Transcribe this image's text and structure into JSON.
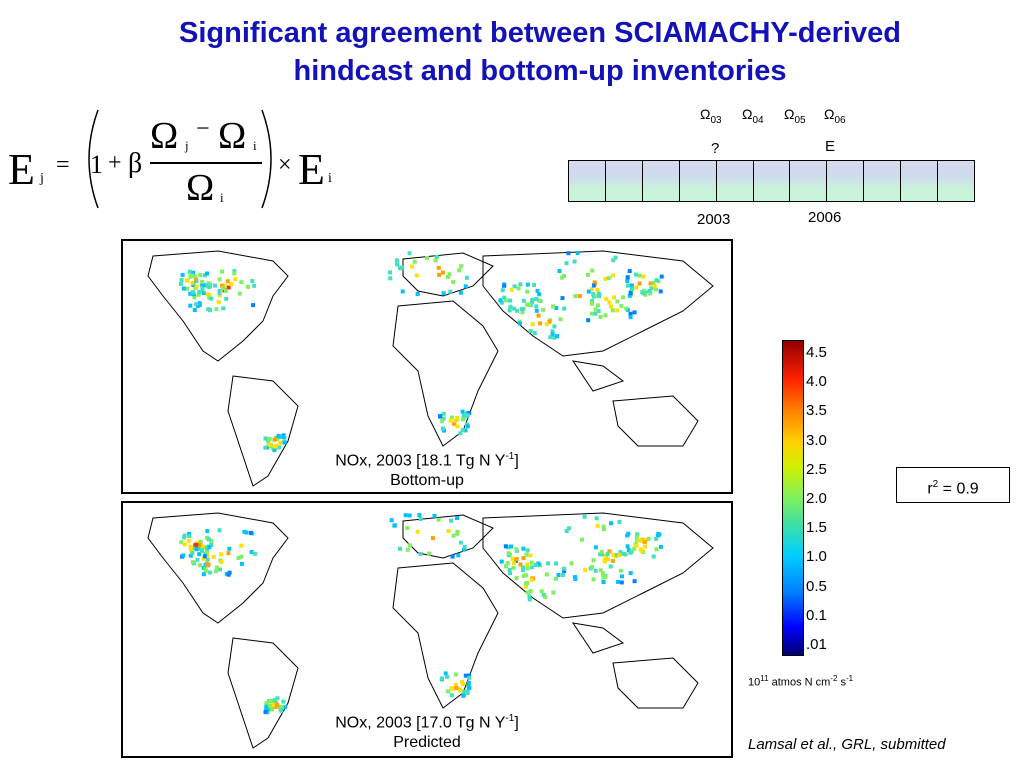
{
  "title": {
    "line1": "Significant agreement between SCIAMACHY-derived",
    "line2": "hindcast and bottom-up inventories"
  },
  "formula": {
    "E": "E",
    "sub_j": "j",
    "sub_i": "i",
    "equals": "=",
    "one": "1",
    "plus": "+",
    "beta": "β",
    "omega": "Ω",
    "minus": "−",
    "times": "×"
  },
  "omega_labels": [
    {
      "symbol": "Ω",
      "sub": "03"
    },
    {
      "symbol": "Ω",
      "sub": "04"
    },
    {
      "symbol": "Ω",
      "sub": "05"
    },
    {
      "symbol": "Ω",
      "sub": "06"
    }
  ],
  "timeline": {
    "question_mark": "?",
    "e_mark": "E",
    "cells": 11,
    "year_left": "2003",
    "year_right": "2006"
  },
  "maps": {
    "top": {
      "caption_prefix": "NOx, 2003 [18.1 Tg N Y",
      "caption_sup": "-1",
      "caption_suffix": "]",
      "caption_line2": "Bottom-up"
    },
    "bottom": {
      "caption_prefix": "NOx, 2003 [17.0 Tg N Y",
      "caption_sup": "-1",
      "caption_suffix": "]",
      "caption_line2": "Predicted"
    }
  },
  "colorbar": {
    "ticks": [
      "4.5",
      "4.0",
      "3.5",
      "3.0",
      "2.5",
      "2.0",
      "1.5",
      "1.0",
      "0.5",
      "0.1",
      ".01"
    ],
    "units_prefix": "10",
    "units_exp": "11",
    "units_text": " atmos N cm",
    "units_exp2": "-2",
    "units_text2": " s",
    "units_exp3": "-1"
  },
  "r2": {
    "r": "r",
    "exp": "2",
    "rest": " = 0.9"
  },
  "citation": "Lamsal et al., GRL, submitted"
}
